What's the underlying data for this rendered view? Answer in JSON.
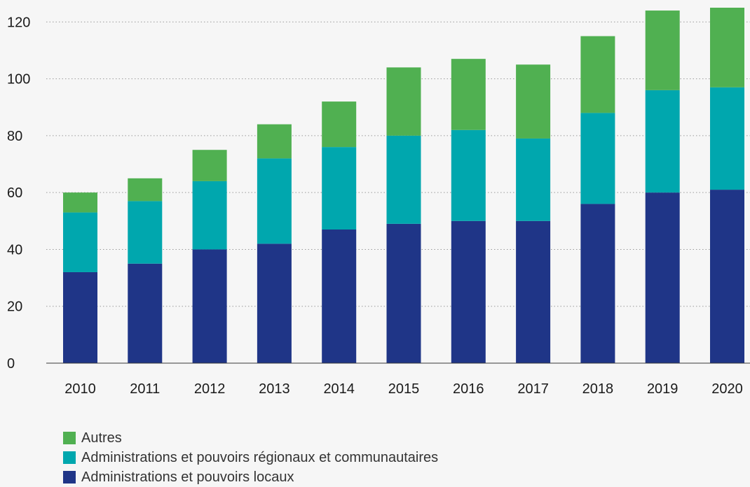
{
  "chart_data": {
    "type": "bar",
    "stacked": true,
    "categories": [
      "2010",
      "2011",
      "2012",
      "2013",
      "2014",
      "2015",
      "2016",
      "2017",
      "2018",
      "2019",
      "2020"
    ],
    "series": [
      {
        "name": "Administrations et pouvoirs locaux",
        "color": "#1f3587",
        "values": [
          32,
          35,
          40,
          42,
          47,
          49,
          50,
          50,
          56,
          60,
          61
        ]
      },
      {
        "name": "Administrations et pouvoirs régionaux et communautaires",
        "color": "#00a7ae",
        "values": [
          21,
          22,
          24,
          30,
          29,
          31,
          32,
          29,
          32,
          36,
          36
        ]
      },
      {
        "name": "Autres",
        "color": "#50b051",
        "values": [
          7,
          8,
          11,
          12,
          16,
          24,
          25,
          26,
          27,
          28,
          28
        ]
      }
    ],
    "ylim": [
      0,
      125
    ],
    "yticks": [
      "0",
      "20",
      "40",
      "60",
      "80",
      "100",
      "120"
    ],
    "grid": true,
    "legend_position": "bottom-left",
    "title": "",
    "xlabel": "",
    "ylabel": ""
  },
  "legend": {
    "items": [
      {
        "label": "Autres",
        "color": "#50b051"
      },
      {
        "label": "Administrations et pouvoirs régionaux et communautaires",
        "color": "#00a7ae"
      },
      {
        "label": "Administrations et pouvoirs locaux",
        "color": "#1f3587"
      }
    ]
  }
}
